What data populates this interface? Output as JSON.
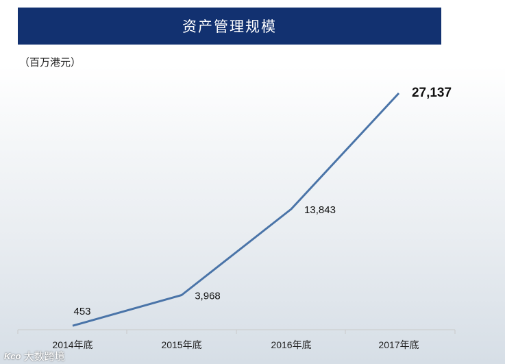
{
  "header": {
    "title": "资产管理规模"
  },
  "chart_data": {
    "type": "line",
    "unit_label": "（百万港元）",
    "categories": [
      "2014年底",
      "2015年底",
      "2016年底",
      "2017年底"
    ],
    "series": [
      {
        "values": [
          453,
          3968,
          13843,
          27137
        ]
      }
    ],
    "data_labels": [
      "453",
      "3,968",
      "13,843",
      "27,137"
    ],
    "ylim": [
      0,
      28000
    ],
    "grid": false,
    "line_color": "#4a74a8"
  },
  "watermark": {
    "logo": "Kco",
    "text": "大数跨境"
  }
}
